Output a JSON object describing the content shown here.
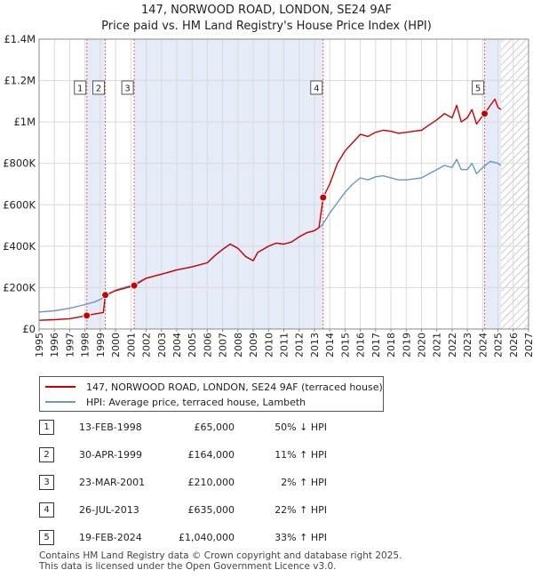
{
  "chart_data": {
    "type": "line",
    "title": "147, NORWOOD ROAD, LONDON, SE24 9AF",
    "subtitle": "Price paid vs. HM Land Registry's House Price Index (HPI)",
    "x_range": [
      1995,
      2027
    ],
    "ylim": [
      0,
      1400000
    ],
    "y_ticks": [
      0,
      200000,
      400000,
      600000,
      800000,
      1000000,
      1200000,
      1400000
    ],
    "y_tick_labels": [
      "£0",
      "£200K",
      "£400K",
      "£600K",
      "£800K",
      "£1M",
      "£1.2M",
      "£1.4M"
    ],
    "x_ticks": [
      1995,
      1996,
      1997,
      1998,
      1999,
      2000,
      2001,
      2002,
      2003,
      2004,
      2005,
      2006,
      2007,
      2008,
      2009,
      2010,
      2011,
      2012,
      2013,
      2014,
      2015,
      2016,
      2017,
      2018,
      2019,
      2020,
      2021,
      2022,
      2023,
      2024,
      2025,
      2026,
      2027
    ],
    "shaded_spans": [
      [
        1998.12,
        1999.33
      ],
      [
        2001.22,
        2013.57
      ],
      [
        2024.13,
        2025.2
      ]
    ],
    "forecast_hatch_start": 2025.2,
    "series": [
      {
        "name": "147, NORWOOD ROAD, LONDON, SE24 9AF (terraced house)",
        "color": "#cc0000",
        "x": [
          1995.0,
          1996.0,
          1997.0,
          1998.12,
          1998.6,
          1999.2,
          1999.33,
          2000.0,
          2001.0,
          2001.22,
          2002.0,
          2003.0,
          2004.0,
          2005.0,
          2006.0,
          2006.5,
          2007.0,
          2007.5,
          2008.0,
          2008.5,
          2009.0,
          2009.3,
          2010.0,
          2010.5,
          2011.0,
          2011.5,
          2012.0,
          2012.5,
          2013.0,
          2013.3,
          2013.57,
          2014.0,
          2014.5,
          2015.0,
          2015.5,
          2016.0,
          2016.5,
          2017.0,
          2017.5,
          2018.0,
          2018.5,
          2019.0,
          2019.5,
          2020.0,
          2020.5,
          2021.0,
          2021.5,
          2022.0,
          2022.3,
          2022.6,
          2023.0,
          2023.3,
          2023.6,
          2024.0,
          2024.13,
          2024.5,
          2024.8,
          2025.0,
          2025.2
        ],
        "values": [
          42000,
          45000,
          50000,
          65000,
          72000,
          80000,
          164000,
          185000,
          205000,
          210000,
          245000,
          265000,
          285000,
          300000,
          320000,
          355000,
          385000,
          410000,
          390000,
          350000,
          330000,
          370000,
          400000,
          415000,
          410000,
          420000,
          445000,
          465000,
          475000,
          490000,
          635000,
          700000,
          800000,
          860000,
          900000,
          940000,
          930000,
          950000,
          960000,
          955000,
          945000,
          950000,
          955000,
          960000,
          985000,
          1010000,
          1040000,
          1020000,
          1080000,
          1000000,
          1020000,
          1060000,
          990000,
          1030000,
          1040000,
          1080000,
          1110000,
          1070000,
          1060000
        ]
      },
      {
        "name": "HPI: Average price, terraced house, Lambeth",
        "color": "#6a96cc",
        "x": [
          1995.0,
          1996.0,
          1997.0,
          1998.0,
          1998.6,
          1999.0,
          1999.5,
          2000.0,
          2001.0,
          2002.0,
          2003.0,
          2004.0,
          2005.0,
          2006.0,
          2006.5,
          2007.0,
          2007.5,
          2008.0,
          2008.5,
          2009.0,
          2009.3,
          2010.0,
          2010.5,
          2011.0,
          2011.5,
          2012.0,
          2012.5,
          2013.0,
          2013.5,
          2014.0,
          2014.5,
          2015.0,
          2015.5,
          2016.0,
          2016.5,
          2017.0,
          2017.5,
          2018.0,
          2018.5,
          2019.0,
          2019.5,
          2020.0,
          2020.5,
          2021.0,
          2021.5,
          2022.0,
          2022.3,
          2022.6,
          2023.0,
          2023.3,
          2023.6,
          2024.0,
          2024.5,
          2025.0,
          2025.2
        ],
        "values": [
          82000,
          88000,
          100000,
          118000,
          130000,
          143000,
          165000,
          188000,
          210000,
          245000,
          265000,
          285000,
          300000,
          320000,
          355000,
          385000,
          410000,
          390000,
          350000,
          330000,
          370000,
          400000,
          415000,
          410000,
          420000,
          445000,
          465000,
          475000,
          500000,
          560000,
          610000,
          660000,
          700000,
          730000,
          720000,
          735000,
          740000,
          730000,
          720000,
          720000,
          725000,
          730000,
          750000,
          770000,
          790000,
          780000,
          820000,
          770000,
          770000,
          800000,
          750000,
          780000,
          810000,
          800000,
          790000
        ]
      }
    ],
    "sales": [
      {
        "num": "1",
        "x": 1998.12,
        "y": 65000
      },
      {
        "num": "2",
        "x": 1999.33,
        "y": 164000
      },
      {
        "num": "3",
        "x": 2001.22,
        "y": 210000
      },
      {
        "num": "4",
        "x": 2013.57,
        "y": 635000
      },
      {
        "num": "5",
        "x": 2024.13,
        "y": 1040000
      }
    ]
  },
  "legend": {
    "red_label": "147, NORWOOD ROAD, LONDON, SE24 9AF (terraced house)",
    "blue_label": "HPI: Average price, terraced house, Lambeth",
    "red_color": "#cc0000",
    "blue_color": "#6a96cc"
  },
  "table": [
    {
      "num": "1",
      "date": "13-FEB-1998",
      "price": "£65,000",
      "rel": "50% ↓ HPI"
    },
    {
      "num": "2",
      "date": "30-APR-1999",
      "price": "£164,000",
      "rel": "11% ↑ HPI"
    },
    {
      "num": "3",
      "date": "23-MAR-2001",
      "price": "£210,000",
      "rel": "2% ↑ HPI"
    },
    {
      "num": "4",
      "date": "26-JUL-2013",
      "price": "£635,000",
      "rel": "22% ↑ HPI"
    },
    {
      "num": "5",
      "date": "19-FEB-2024",
      "price": "£1,040,000",
      "rel": "33% ↑ HPI"
    }
  ],
  "footer": {
    "line1": "Contains HM Land Registry data © Crown copyright and database right 2025.",
    "line2": "This data is licensed under the Open Government Licence v3.0."
  },
  "colors": {
    "shade": "#e6ebf8",
    "grid": "#d9d9d9",
    "vline": "#e06060"
  }
}
